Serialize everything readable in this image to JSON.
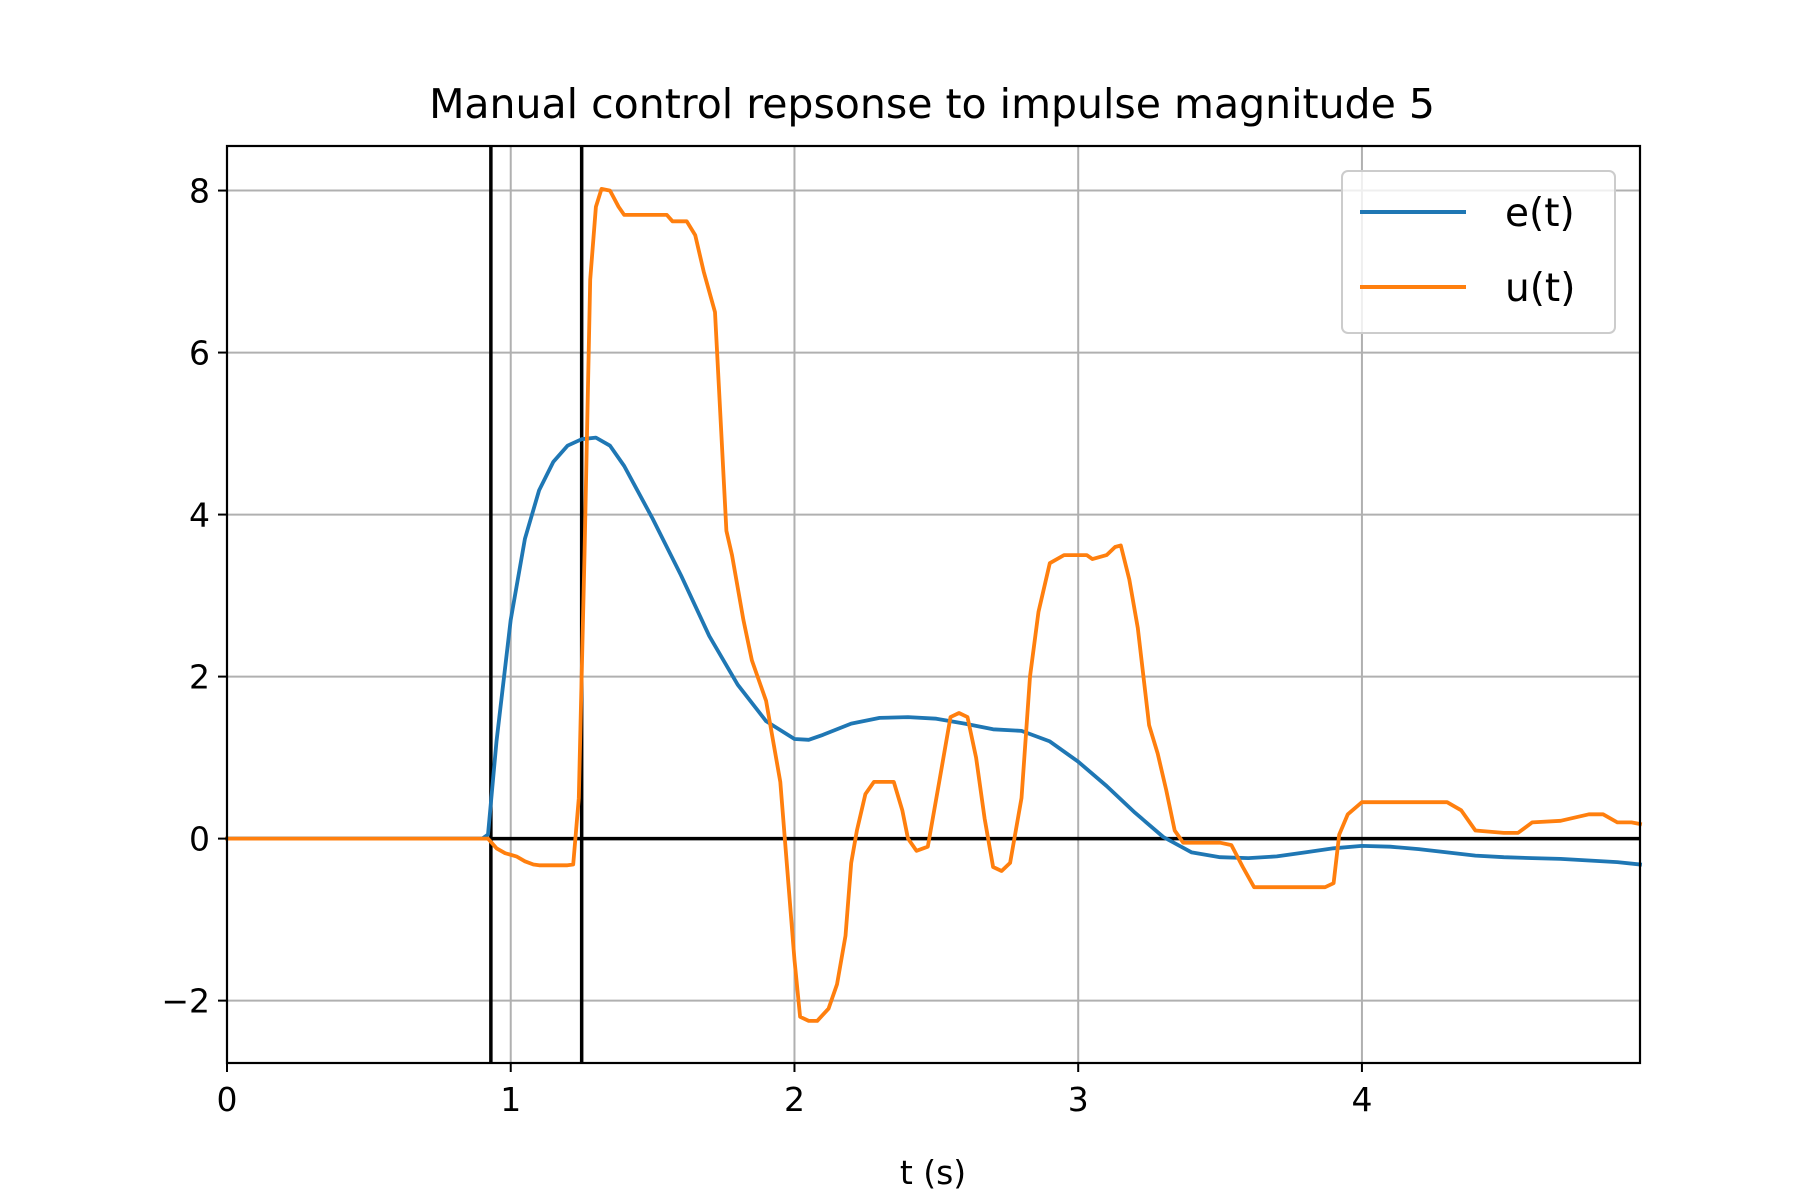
{
  "chart_data": {
    "type": "line",
    "title": "Manual control repsonse to impulse magnitude 5",
    "xlabel": "t (s)",
    "ylabel": "",
    "xlim": [
      0,
      4.98
    ],
    "ylim": [
      -2.77,
      8.55
    ],
    "xticks": [
      0,
      1,
      2,
      3,
      4
    ],
    "yticks": [
      -2,
      0,
      2,
      4,
      6,
      8
    ],
    "ytick_labels": [
      "−2",
      "0",
      "2",
      "4",
      "6",
      "8"
    ],
    "grid": true,
    "legend_position": "upper right",
    "reference_lines": {
      "horizontal": [
        0
      ],
      "vertical": [
        0.93,
        1.25
      ],
      "color": "#000000"
    },
    "series": [
      {
        "name": "e(t)",
        "color": "#1f77b4",
        "x": [
          0,
          0.5,
          0.9,
          0.92,
          0.95,
          1.0,
          1.05,
          1.1,
          1.15,
          1.2,
          1.25,
          1.3,
          1.35,
          1.4,
          1.5,
          1.6,
          1.7,
          1.8,
          1.9,
          2.0,
          2.05,
          2.1,
          2.2,
          2.3,
          2.4,
          2.5,
          2.6,
          2.7,
          2.8,
          2.9,
          3.0,
          3.1,
          3.2,
          3.3,
          3.4,
          3.5,
          3.6,
          3.7,
          3.8,
          3.9,
          4.0,
          4.1,
          4.2,
          4.3,
          4.4,
          4.5,
          4.6,
          4.7,
          4.8,
          4.9,
          4.98
        ],
        "y": [
          0,
          0,
          0,
          0.05,
          1.2,
          2.7,
          3.7,
          4.3,
          4.65,
          4.85,
          4.93,
          4.95,
          4.85,
          4.6,
          3.95,
          3.25,
          2.5,
          1.9,
          1.45,
          1.23,
          1.22,
          1.28,
          1.42,
          1.49,
          1.5,
          1.48,
          1.42,
          1.35,
          1.33,
          1.2,
          0.95,
          0.65,
          0.32,
          0.02,
          -0.17,
          -0.23,
          -0.24,
          -0.22,
          -0.17,
          -0.12,
          -0.09,
          -0.1,
          -0.13,
          -0.17,
          -0.21,
          -0.23,
          -0.24,
          -0.25,
          -0.27,
          -0.29,
          -0.32
        ]
      },
      {
        "name": "u(t)",
        "color": "#ff7f0e",
        "x": [
          0,
          0.5,
          0.92,
          0.95,
          0.98,
          1.02,
          1.05,
          1.08,
          1.1,
          1.15,
          1.2,
          1.22,
          1.24,
          1.26,
          1.28,
          1.3,
          1.32,
          1.35,
          1.38,
          1.4,
          1.45,
          1.5,
          1.55,
          1.57,
          1.62,
          1.65,
          1.68,
          1.72,
          1.76,
          1.78,
          1.82,
          1.85,
          1.9,
          1.95,
          2.0,
          2.02,
          2.05,
          2.08,
          2.12,
          2.15,
          2.18,
          2.2,
          2.22,
          2.25,
          2.28,
          2.3,
          2.32,
          2.35,
          2.38,
          2.4,
          2.43,
          2.47,
          2.51,
          2.55,
          2.58,
          2.61,
          2.64,
          2.67,
          2.7,
          2.73,
          2.76,
          2.8,
          2.83,
          2.86,
          2.9,
          2.95,
          3.0,
          3.03,
          3.05,
          3.1,
          3.13,
          3.15,
          3.18,
          3.21,
          3.25,
          3.28,
          3.31,
          3.34,
          3.37,
          3.42,
          3.45,
          3.5,
          3.54,
          3.58,
          3.62,
          3.65,
          3.7,
          3.8,
          3.87,
          3.9,
          3.92,
          3.95,
          4.0,
          4.05,
          4.1,
          4.2,
          4.3,
          4.35,
          4.4,
          4.5,
          4.55,
          4.6,
          4.7,
          4.8,
          4.85,
          4.9,
          4.95,
          4.98
        ],
        "y": [
          0,
          0,
          0,
          -0.12,
          -0.18,
          -0.22,
          -0.28,
          -0.32,
          -0.33,
          -0.33,
          -0.33,
          -0.32,
          0.5,
          3.5,
          6.9,
          7.8,
          8.02,
          8.0,
          7.8,
          7.7,
          7.7,
          7.7,
          7.7,
          7.62,
          7.62,
          7.45,
          7.0,
          6.5,
          3.8,
          3.5,
          2.7,
          2.2,
          1.7,
          0.7,
          -1.5,
          -2.2,
          -2.25,
          -2.25,
          -2.1,
          -1.8,
          -1.2,
          -0.3,
          0.1,
          0.55,
          0.7,
          0.7,
          0.7,
          0.7,
          0.35,
          0.0,
          -0.15,
          -0.1,
          0.7,
          1.5,
          1.55,
          1.5,
          1.0,
          0.25,
          -0.35,
          -0.4,
          -0.3,
          0.5,
          2.0,
          2.8,
          3.4,
          3.5,
          3.5,
          3.5,
          3.45,
          3.5,
          3.6,
          3.62,
          3.2,
          2.6,
          1.4,
          1.05,
          0.6,
          0.1,
          -0.05,
          -0.05,
          -0.05,
          -0.05,
          -0.08,
          -0.35,
          -0.6,
          -0.6,
          -0.6,
          -0.6,
          -0.6,
          -0.55,
          0.05,
          0.3,
          0.45,
          0.45,
          0.45,
          0.45,
          0.45,
          0.35,
          0.1,
          0.07,
          0.07,
          0.2,
          0.22,
          0.3,
          0.3,
          0.2,
          0.2,
          0.18
        ]
      }
    ]
  }
}
